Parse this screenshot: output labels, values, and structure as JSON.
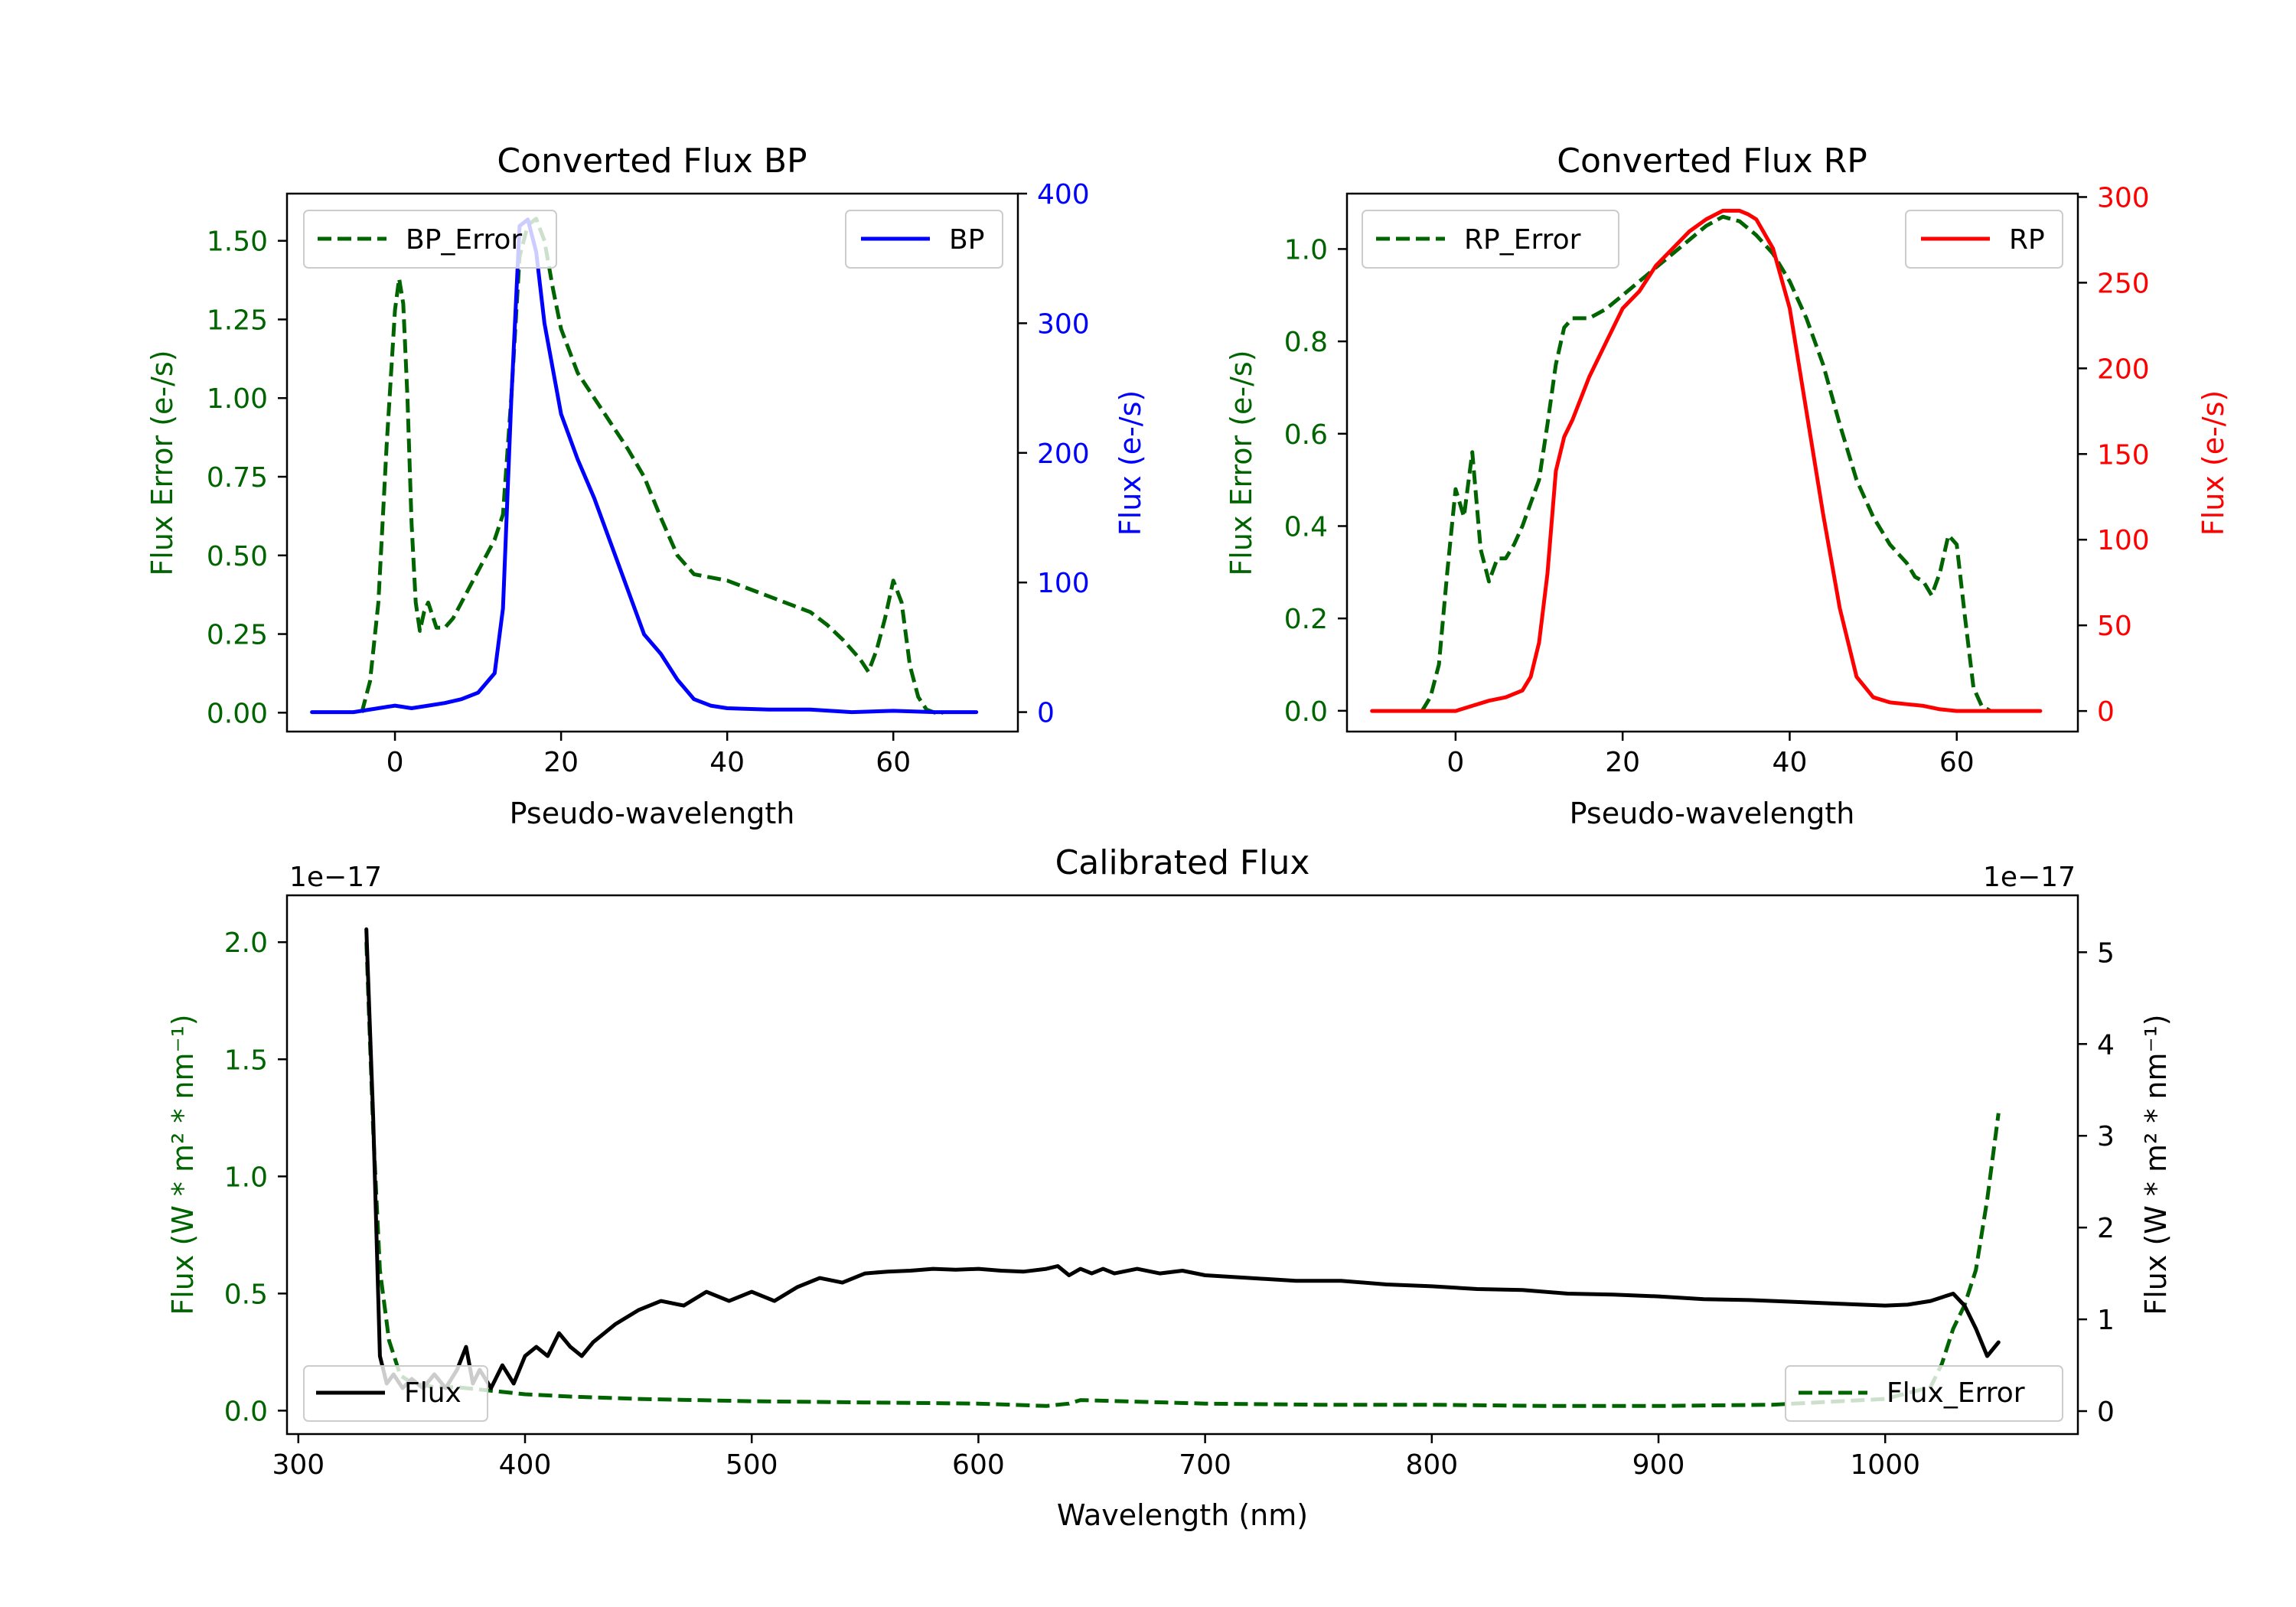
{
  "colors": {
    "error": "#006400",
    "bp": "#0000ff",
    "rp": "#ff0000",
    "flux": "#000000"
  },
  "chart_data": [
    {
      "type": "line",
      "title": "Converted Flux BP",
      "xlabel": "Pseudo-wavelength",
      "ylabel": "Flux Error (e-/s)",
      "ylabel_right": "Flux (e-/s)",
      "xlim": [
        -13,
        75
      ],
      "ylim": [
        -0.06,
        1.65
      ],
      "ylim_right": [
        -15,
        400
      ],
      "xticks": [
        0,
        20,
        40,
        60
      ],
      "yticks": [
        0.0,
        0.25,
        0.5,
        0.75,
        1.0,
        1.25,
        1.5
      ],
      "yticklabels": [
        "0.00",
        "0.25",
        "0.50",
        "0.75",
        "1.00",
        "1.25",
        "1.50"
      ],
      "yticks_right": [
        0,
        100,
        200,
        300,
        400
      ],
      "series": [
        {
          "name": "BP_Error",
          "axis": "left",
          "style": "dashed",
          "color": "error",
          "x": [
            -4,
            -3,
            -2,
            -1,
            0,
            0.5,
            1,
            1.5,
            2,
            2.5,
            3,
            3.5,
            4,
            5,
            6,
            7,
            8,
            10,
            12,
            13,
            14,
            15,
            16,
            17,
            18,
            19,
            20,
            22,
            24,
            26,
            28,
            30,
            32,
            34,
            36,
            38,
            40,
            42,
            44,
            46,
            48,
            50,
            52,
            54,
            56,
            57,
            58,
            59,
            60,
            61,
            62,
            63,
            64,
            65,
            66
          ],
          "y": [
            0.0,
            0.1,
            0.35,
            0.85,
            1.28,
            1.38,
            1.3,
            1.0,
            0.6,
            0.35,
            0.26,
            0.32,
            0.35,
            0.27,
            0.27,
            0.3,
            0.35,
            0.45,
            0.55,
            0.63,
            1.0,
            1.45,
            1.55,
            1.57,
            1.5,
            1.35,
            1.22,
            1.08,
            1.0,
            0.92,
            0.84,
            0.75,
            0.62,
            0.5,
            0.44,
            0.43,
            0.42,
            0.4,
            0.38,
            0.36,
            0.34,
            0.32,
            0.28,
            0.23,
            0.17,
            0.13,
            0.2,
            0.3,
            0.42,
            0.35,
            0.15,
            0.05,
            0.01,
            0.0,
            0.0
          ]
        },
        {
          "name": "BP",
          "axis": "right",
          "style": "solid",
          "color": "bp",
          "x": [
            -10,
            -5,
            0,
            2,
            4,
            6,
            8,
            10,
            12,
            13,
            14,
            15,
            16,
            17,
            18,
            20,
            22,
            24,
            26,
            28,
            30,
            32,
            34,
            36,
            38,
            40,
            45,
            50,
            55,
            60,
            65,
            70
          ],
          "y": [
            0,
            0,
            5,
            3,
            5,
            7,
            10,
            15,
            30,
            80,
            240,
            375,
            380,
            355,
            300,
            230,
            195,
            165,
            130,
            95,
            60,
            45,
            25,
            10,
            5,
            3,
            2,
            2,
            0,
            1,
            0,
            0
          ]
        }
      ],
      "legend": [
        {
          "label": "BP_Error",
          "position": "upper-left"
        },
        {
          "label": "BP",
          "position": "upper-right"
        }
      ]
    },
    {
      "type": "line",
      "title": "Converted Flux RP",
      "xlabel": "Pseudo-wavelength",
      "ylabel": "Flux Error (e-/s)",
      "ylabel_right": "Flux (e-/s)",
      "xlim": [
        -13,
        74.5
      ],
      "ylim": [
        -0.045,
        1.12
      ],
      "ylim_right": [
        -12,
        302
      ],
      "xticks": [
        0,
        20,
        40,
        60
      ],
      "yticks": [
        0.0,
        0.2,
        0.4,
        0.6,
        0.8,
        1.0
      ],
      "yticklabels": [
        "0.0",
        "0.2",
        "0.4",
        "0.6",
        "0.8",
        "1.0"
      ],
      "yticks_right": [
        0,
        50,
        100,
        150,
        200,
        250,
        300
      ],
      "series": [
        {
          "name": "RP_Error",
          "axis": "left",
          "style": "dashed",
          "color": "error",
          "x": [
            -4,
            -3,
            -2,
            -1,
            0,
            1,
            2,
            3,
            4,
            5,
            6,
            7,
            8,
            10,
            11,
            12,
            13,
            14,
            16,
            18,
            20,
            22,
            24,
            26,
            28,
            30,
            32,
            34,
            36,
            38,
            40,
            42,
            44,
            46,
            48,
            50,
            52,
            54,
            55,
            56,
            57,
            58,
            59,
            60,
            61,
            62,
            63,
            64
          ],
          "y": [
            0.0,
            0.03,
            0.1,
            0.3,
            0.48,
            0.42,
            0.56,
            0.35,
            0.28,
            0.33,
            0.33,
            0.36,
            0.4,
            0.5,
            0.62,
            0.75,
            0.83,
            0.85,
            0.85,
            0.87,
            0.9,
            0.93,
            0.96,
            0.99,
            1.02,
            1.05,
            1.07,
            1.06,
            1.03,
            0.99,
            0.93,
            0.85,
            0.75,
            0.62,
            0.5,
            0.42,
            0.36,
            0.32,
            0.29,
            0.28,
            0.25,
            0.3,
            0.38,
            0.36,
            0.2,
            0.05,
            0.01,
            0.0
          ]
        },
        {
          "name": "RP",
          "axis": "right",
          "style": "solid",
          "color": "rp",
          "x": [
            -10,
            -5,
            0,
            2,
            4,
            6,
            8,
            9,
            10,
            11,
            12,
            13,
            14,
            16,
            18,
            20,
            22,
            24,
            26,
            28,
            30,
            32,
            33,
            34,
            35,
            36,
            38,
            40,
            42,
            44,
            46,
            48,
            50,
            52,
            54,
            56,
            58,
            60,
            65,
            70
          ],
          "y": [
            0,
            0,
            0,
            3,
            6,
            8,
            12,
            20,
            40,
            80,
            140,
            160,
            170,
            195,
            215,
            235,
            245,
            260,
            270,
            280,
            287,
            292,
            292,
            292,
            290,
            287,
            270,
            235,
            175,
            115,
            60,
            20,
            8,
            5,
            4,
            3,
            1,
            0,
            0,
            0
          ]
        }
      ],
      "legend": [
        {
          "label": "RP_Error",
          "position": "upper-left"
        },
        {
          "label": "RP",
          "position": "upper-right"
        }
      ]
    },
    {
      "type": "line",
      "title": "Calibrated Flux",
      "xlabel": "Wavelength (nm)",
      "ylabel": "Flux (W * m² * nm⁻¹)",
      "ylabel_right": "Flux (W * m² * nm⁻¹)",
      "scale_label_left": "1e−17",
      "scale_label_right": "1e−17",
      "xlim": [
        295,
        1085
      ],
      "ylim": [
        -0.1,
        2.2
      ],
      "ylim_right": [
        -0.25,
        5.62
      ],
      "xticks": [
        300,
        400,
        500,
        600,
        700,
        800,
        900,
        1000
      ],
      "yticks": [
        0.0,
        0.5,
        1.0,
        1.5,
        2.0
      ],
      "yticklabels": [
        "0.0",
        "0.5",
        "1.0",
        "1.5",
        "2.0"
      ],
      "yticks_right": [
        0,
        1,
        2,
        3,
        4,
        5
      ],
      "series": [
        {
          "name": "Flux_Error",
          "axis": "left",
          "style": "dashed",
          "color": "error",
          "x": [
            330,
            333,
            336,
            340,
            345,
            350,
            360,
            370,
            380,
            390,
            400,
            420,
            450,
            500,
            550,
            600,
            630,
            640,
            645,
            700,
            750,
            800,
            850,
            900,
            950,
            1000,
            1020,
            1025,
            1030,
            1035,
            1040,
            1045,
            1050
          ],
          "y": [
            2.0,
            1.2,
            0.6,
            0.3,
            0.15,
            0.12,
            0.1,
            0.1,
            0.09,
            0.08,
            0.07,
            0.06,
            0.05,
            0.04,
            0.035,
            0.03,
            0.02,
            0.03,
            0.045,
            0.03,
            0.025,
            0.025,
            0.02,
            0.02,
            0.025,
            0.05,
            0.1,
            0.2,
            0.35,
            0.45,
            0.6,
            0.9,
            1.27
          ]
        },
        {
          "name": "Flux",
          "axis": "right",
          "style": "solid",
          "color": "flux",
          "x": [
            330,
            333,
            336,
            339,
            342,
            346,
            350,
            355,
            360,
            365,
            370,
            374,
            377,
            380,
            385,
            390,
            395,
            400,
            405,
            410,
            415,
            420,
            425,
            430,
            440,
            450,
            460,
            470,
            480,
            490,
            500,
            510,
            520,
            530,
            540,
            550,
            560,
            570,
            580,
            590,
            600,
            610,
            620,
            630,
            635,
            640,
            645,
            650,
            655,
            660,
            670,
            680,
            690,
            700,
            720,
            740,
            760,
            780,
            800,
            820,
            840,
            860,
            880,
            900,
            920,
            940,
            960,
            980,
            1000,
            1010,
            1020,
            1030,
            1035,
            1040,
            1045,
            1050
          ],
          "y": [
            5.25,
            3.2,
            0.6,
            0.3,
            0.4,
            0.25,
            0.35,
            0.25,
            0.4,
            0.25,
            0.45,
            0.7,
            0.3,
            0.45,
            0.25,
            0.5,
            0.3,
            0.6,
            0.7,
            0.6,
            0.85,
            0.7,
            0.6,
            0.75,
            0.95,
            1.1,
            1.2,
            1.15,
            1.3,
            1.2,
            1.3,
            1.2,
            1.35,
            1.45,
            1.4,
            1.5,
            1.52,
            1.53,
            1.55,
            1.54,
            1.55,
            1.53,
            1.52,
            1.55,
            1.58,
            1.48,
            1.55,
            1.5,
            1.55,
            1.5,
            1.55,
            1.5,
            1.53,
            1.48,
            1.45,
            1.42,
            1.42,
            1.38,
            1.36,
            1.33,
            1.32,
            1.28,
            1.27,
            1.25,
            1.22,
            1.21,
            1.19,
            1.17,
            1.15,
            1.16,
            1.2,
            1.28,
            1.15,
            0.9,
            0.6,
            0.75
          ]
        }
      ],
      "legend": [
        {
          "label": "Flux",
          "position": "lower-left"
        },
        {
          "label": "Flux_Error",
          "position": "lower-right"
        }
      ]
    }
  ]
}
